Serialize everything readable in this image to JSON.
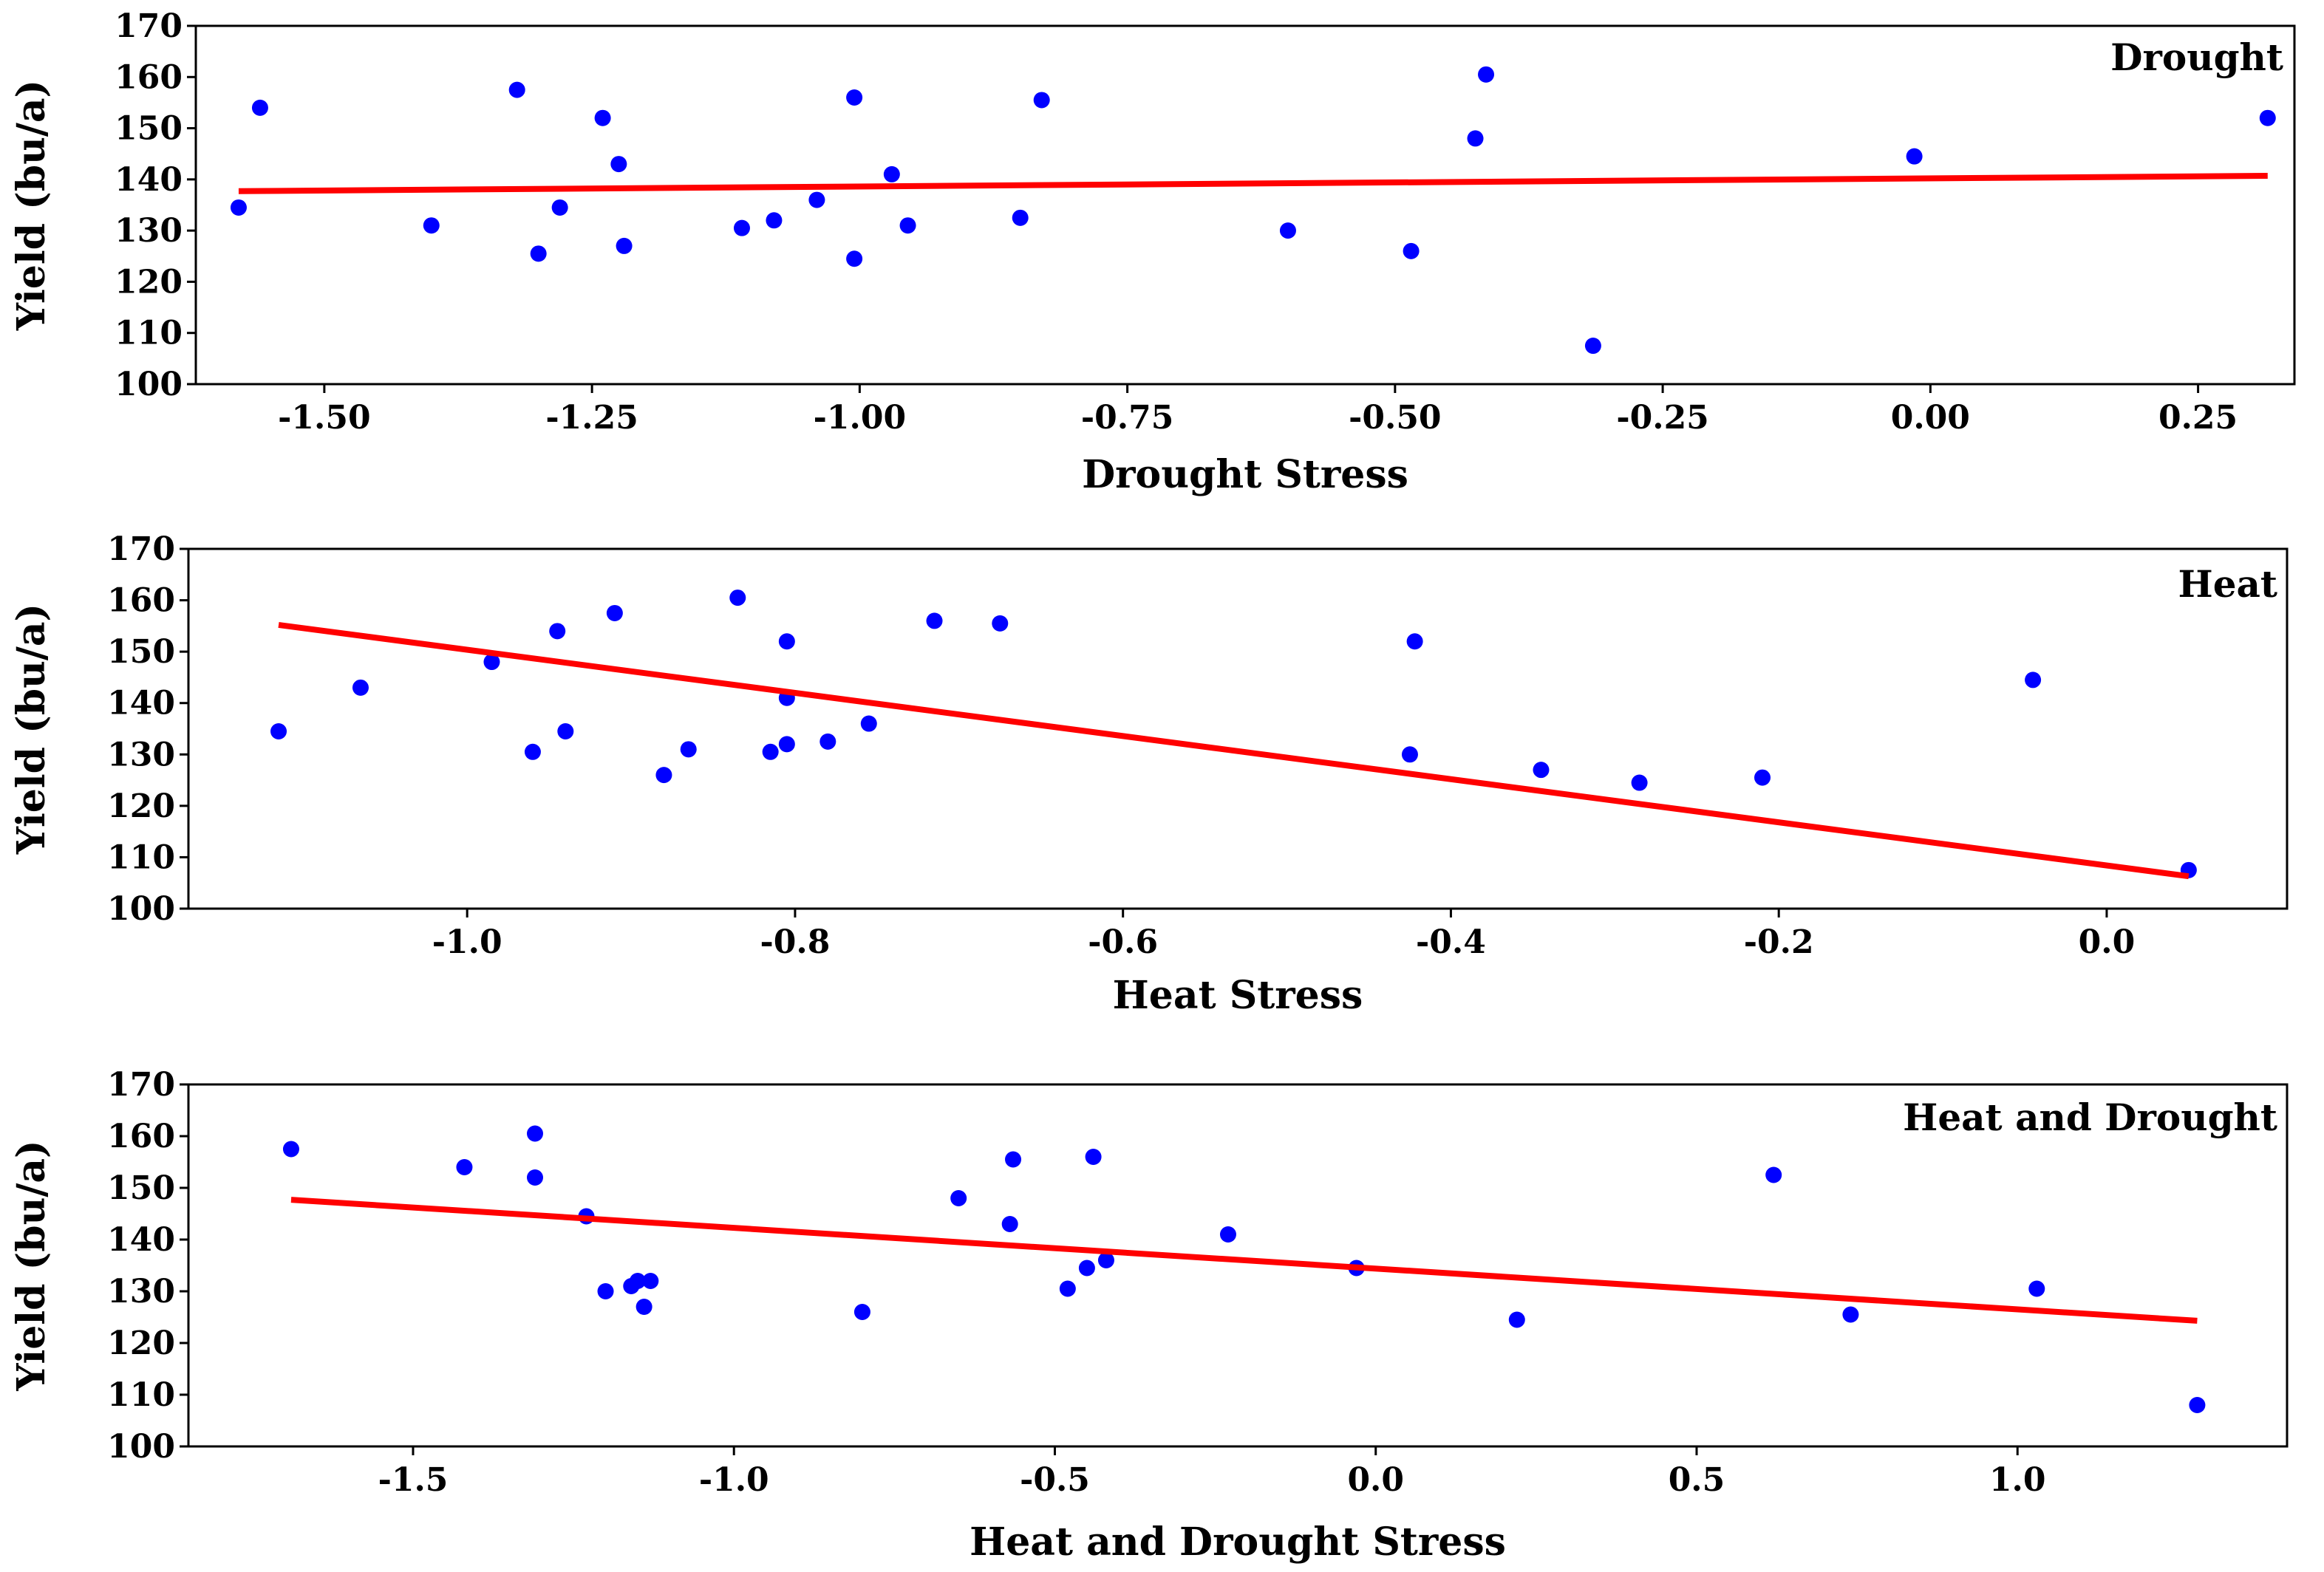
{
  "colors": {
    "points": "#0000FF",
    "fit_line": "#FF0000",
    "frame": "#000000"
  },
  "chart_data": [
    {
      "type": "scatter",
      "title": "Drought",
      "xlabel": "Drought Stress",
      "ylabel": "Yield (bu/a)",
      "xlim": [
        -1.62,
        0.34
      ],
      "ylim": [
        100,
        170
      ],
      "xticks": [
        -1.5,
        -1.25,
        -1.0,
        -0.75,
        -0.5,
        -0.25,
        0.0,
        0.25
      ],
      "xtick_labels": [
        "-1.50",
        "-1.25",
        "-1.00",
        "-0.75",
        "-0.50",
        "-0.25",
        "0.00",
        "0.25"
      ],
      "yticks": [
        100,
        110,
        120,
        130,
        140,
        150,
        160,
        170
      ],
      "ytick_labels": [
        "100",
        "110",
        "120",
        "130",
        "140",
        "150",
        "160",
        "170"
      ],
      "points": {
        "x": [
          -1.58,
          -1.56,
          -1.4,
          -1.32,
          -1.3,
          -1.28,
          -1.24,
          -1.225,
          -1.22,
          -1.11,
          -1.08,
          -1.04,
          -1.005,
          -1.005,
          -0.97,
          -0.955,
          -0.85,
          -0.83,
          -0.6,
          -0.485,
          -0.425,
          -0.415,
          -0.315,
          -0.015,
          0.315
        ],
        "y": [
          134.5,
          154,
          131,
          157.5,
          125.5,
          134.5,
          152,
          143,
          127,
          130.5,
          132,
          136,
          156,
          124.5,
          141,
          131,
          132.5,
          155.5,
          130,
          126,
          148,
          160.5,
          107.5,
          144.5,
          152
        ]
      },
      "fit_line": {
        "x": [
          -1.58,
          0.315
        ],
        "y": [
          137.7,
          140.7
        ]
      }
    },
    {
      "type": "scatter",
      "title": "Heat",
      "xlabel": "Heat Stress",
      "ylabel": "Yield (bu/a)",
      "xlim": [
        -1.17,
        0.11
      ],
      "ylim": [
        100,
        170
      ],
      "xticks": [
        -1.0,
        -0.8,
        -0.6,
        -0.4,
        -0.2,
        0.0
      ],
      "xtick_labels": [
        "-1.0",
        "-0.8",
        "-0.6",
        "-0.4",
        "-0.2",
        "0.0"
      ],
      "yticks": [
        100,
        110,
        120,
        130,
        140,
        150,
        160,
        170
      ],
      "ytick_labels": [
        "100",
        "110",
        "120",
        "130",
        "140",
        "150",
        "160",
        "170"
      ],
      "points": {
        "x": [
          -1.115,
          -1.065,
          -0.985,
          -0.96,
          -0.945,
          -0.94,
          -0.91,
          -0.88,
          -0.865,
          -0.835,
          -0.815,
          -0.805,
          -0.805,
          -0.805,
          -0.78,
          -0.755,
          -0.715,
          -0.675,
          -0.425,
          -0.422,
          -0.345,
          -0.285,
          -0.21,
          -0.045,
          0.05
        ],
        "y": [
          134.5,
          143,
          148,
          130.5,
          154,
          134.5,
          157.5,
          126,
          131,
          160.5,
          130.5,
          152,
          141,
          132,
          132.5,
          136,
          156,
          155.5,
          130,
          152,
          127,
          124.5,
          125.5,
          144.5,
          107.5
        ]
      },
      "fit_line": {
        "x": [
          -1.115,
          0.05
        ],
        "y": [
          155.2,
          106.3
        ]
      }
    },
    {
      "type": "scatter",
      "title": "Heat and Drought",
      "xlabel": "Heat and Drought Stress",
      "ylabel": "Yield (bu/a)",
      "xlim": [
        -1.85,
        1.42
      ],
      "ylim": [
        100,
        170
      ],
      "xticks": [
        -1.5,
        -1.0,
        -0.5,
        0.0,
        0.5,
        1.0
      ],
      "xtick_labels": [
        "-1.5",
        "-1.0",
        "-0.5",
        "0.0",
        "0.5",
        "1.0"
      ],
      "yticks": [
        100,
        110,
        120,
        130,
        140,
        150,
        160,
        170
      ],
      "ytick_labels": [
        "100",
        "110",
        "120",
        "130",
        "140",
        "150",
        "160",
        "170"
      ],
      "points": {
        "x": [
          -1.69,
          -1.42,
          -1.31,
          -1.31,
          -1.23,
          -1.2,
          -1.16,
          -1.15,
          -1.14,
          -1.13,
          -0.8,
          -0.65,
          -0.57,
          -0.565,
          -0.48,
          -0.45,
          -0.44,
          -0.42,
          -0.23,
          -0.03,
          0.22,
          0.62,
          0.74,
          1.03,
          1.28
        ],
        "y": [
          157.5,
          154,
          160.5,
          152,
          144.5,
          130,
          131,
          132,
          127,
          132,
          126,
          148,
          143,
          155.5,
          130.5,
          134.5,
          156,
          136,
          141,
          134.5,
          124.5,
          152.5,
          125.5,
          130.5,
          108
        ]
      },
      "fit_line": {
        "x": [
          -1.69,
          1.28
        ],
        "y": [
          147.7,
          124.3
        ]
      }
    }
  ]
}
